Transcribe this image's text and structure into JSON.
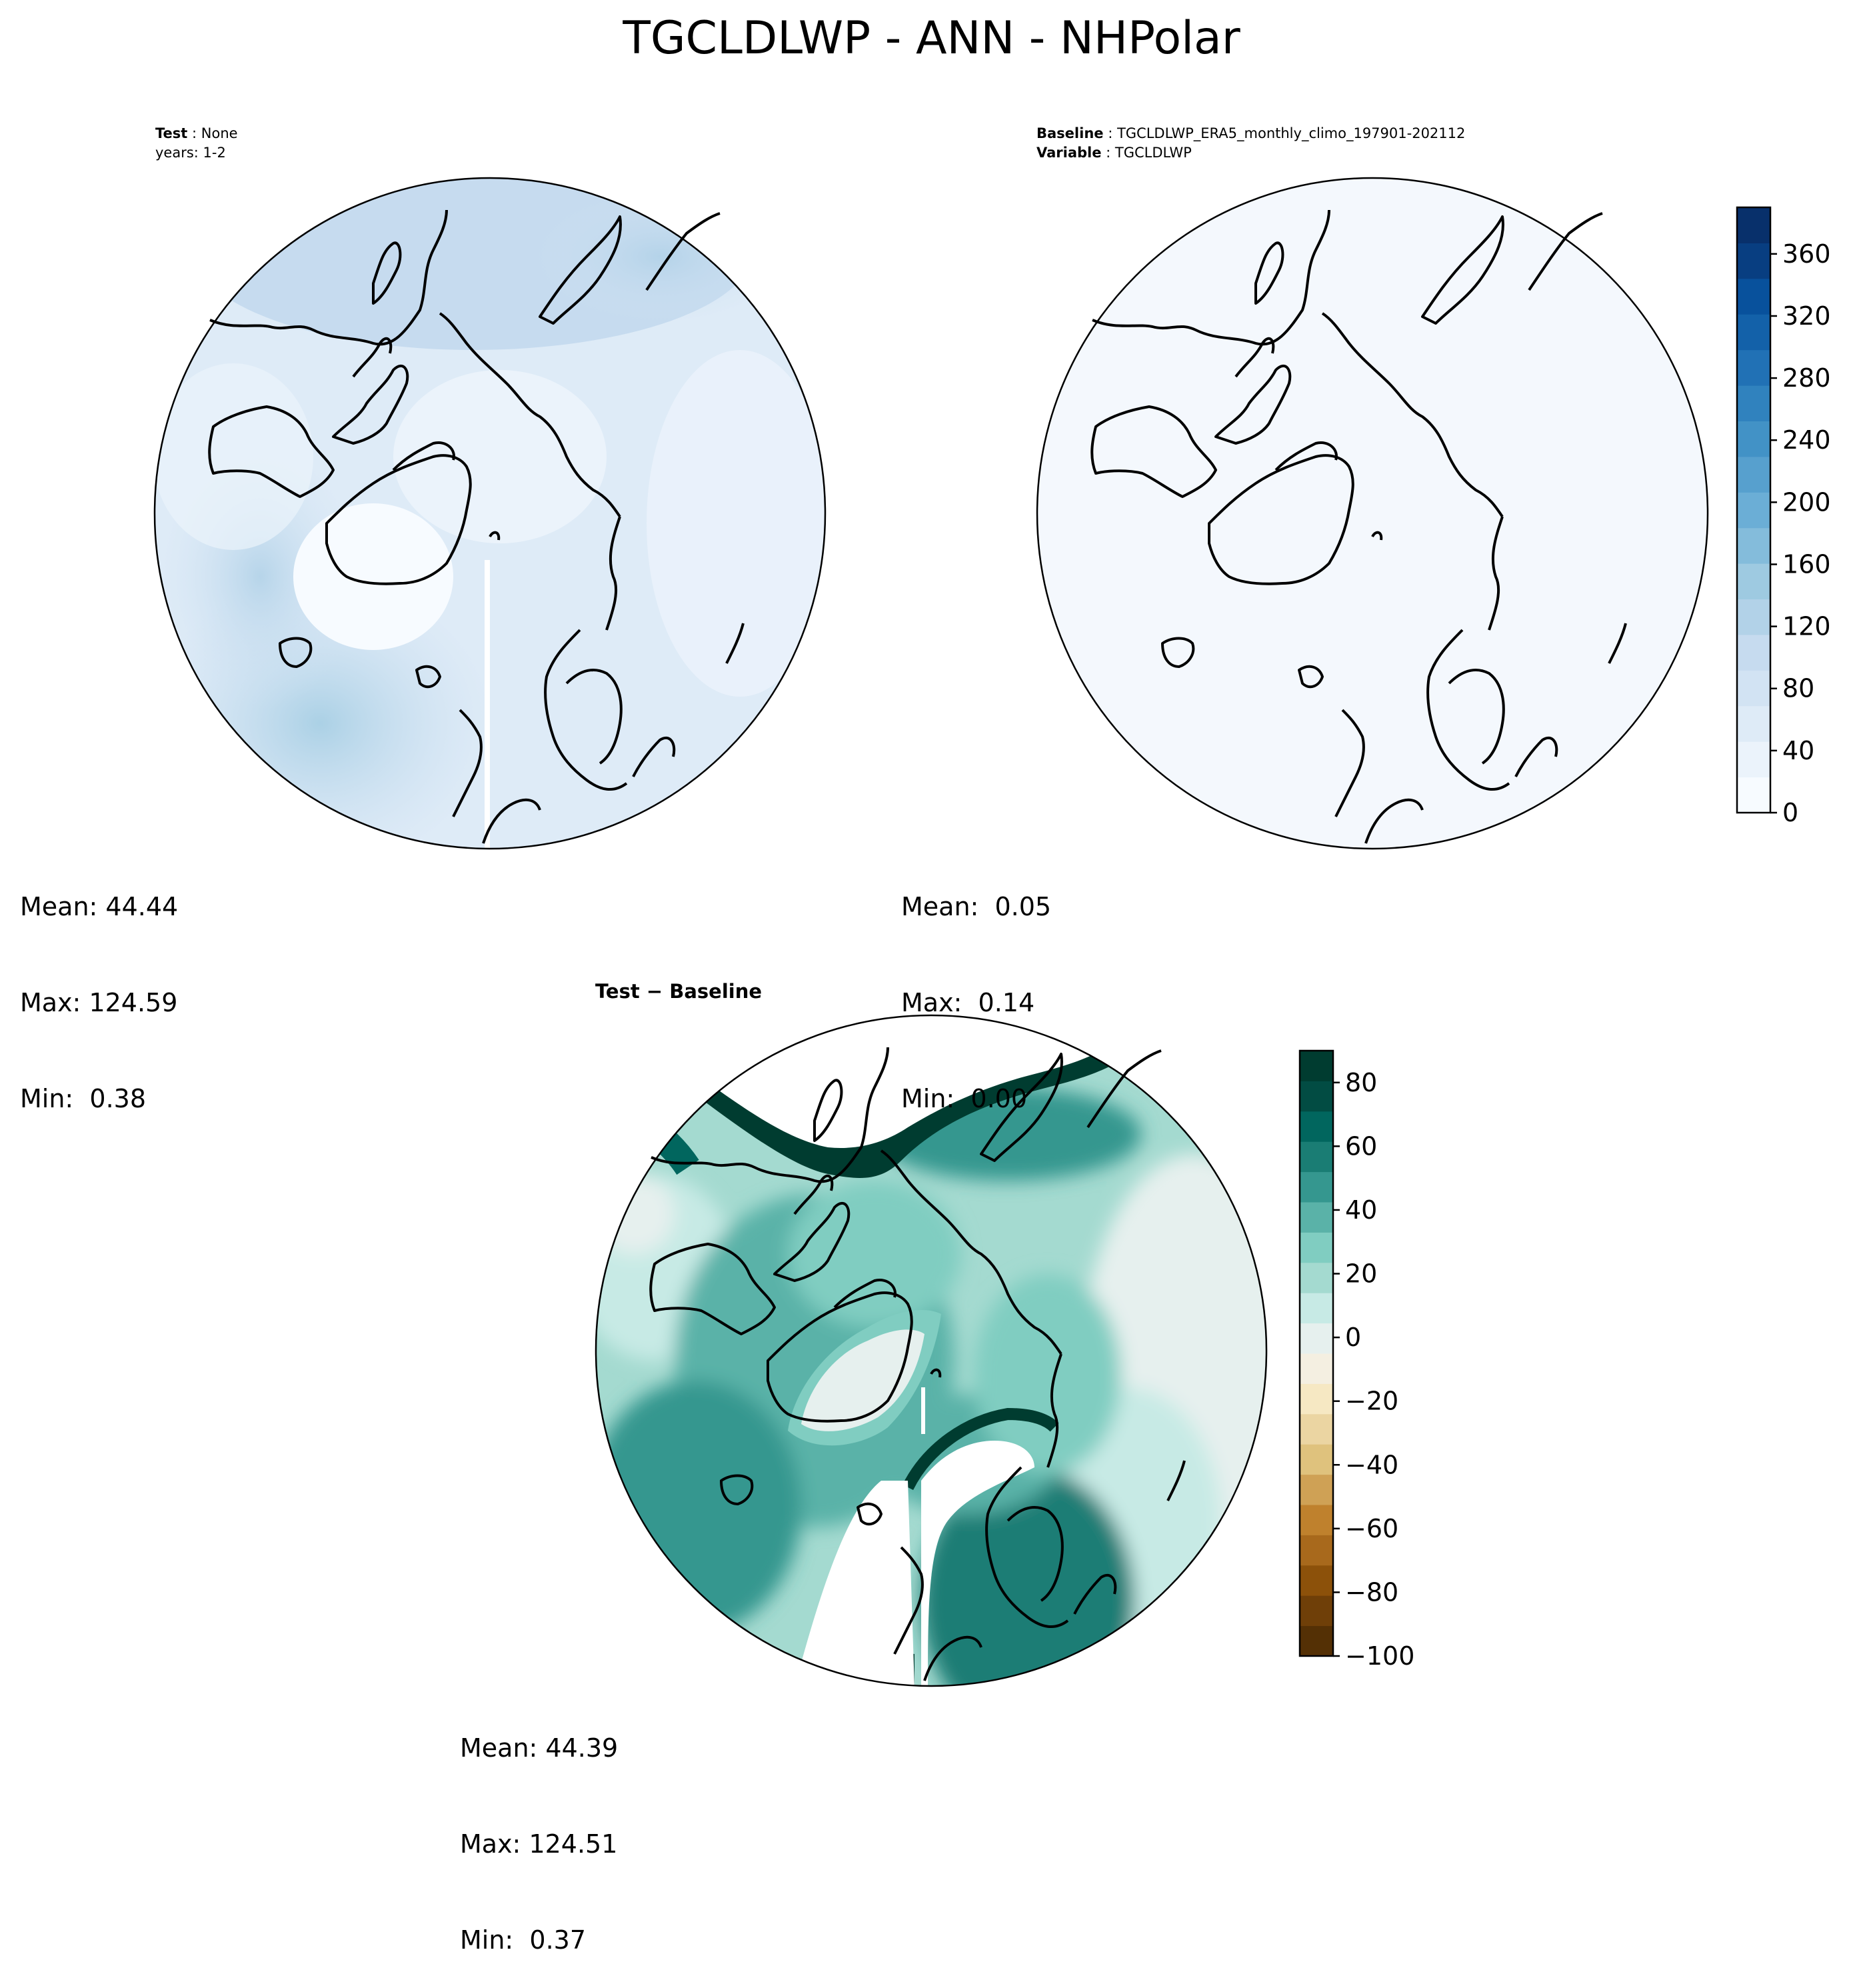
{
  "title": "TGCLDLWP - ANN - NHPolar",
  "panels": {
    "test": {
      "label_key": "Test",
      "label_value": "None",
      "years": "years: 1-2",
      "stats": {
        "mean": "Mean: 44.44",
        "max": "Max: 124.59",
        "min": "Min:  0.38"
      }
    },
    "baseline": {
      "label_key": "Baseline",
      "label_value": "TGCLDLWP_ERA5_monthly_climo_197901-202112",
      "variable_key": "Variable",
      "variable_value": "TGCLDLWP",
      "stats": {
        "mean": "Mean:  0.05",
        "max": "Max:  0.14",
        "min": "Min:  0.00"
      }
    },
    "difference": {
      "title": "Test − Baseline",
      "stats": {
        "mean": "Mean: 44.39",
        "max": "Max: 124.51",
        "min": "Min:  0.37"
      }
    }
  },
  "chart_data": [
    {
      "type": "heatmap",
      "panel": "test",
      "colormap": "Blues",
      "colorbar": {
        "min": 0,
        "max": 390,
        "ticks": [
          0,
          40,
          80,
          120,
          160,
          200,
          240,
          280,
          320,
          360
        ]
      },
      "mean": 44.44,
      "max": 124.59,
      "min": 0.38
    },
    {
      "type": "heatmap",
      "panel": "baseline",
      "colormap": "Blues",
      "colorbar": {
        "min": 0,
        "max": 390,
        "ticks": [
          0,
          40,
          80,
          120,
          160,
          200,
          240,
          280,
          320,
          360
        ]
      },
      "mean": 0.05,
      "max": 0.14,
      "min": 0.0
    },
    {
      "type": "heatmap",
      "panel": "difference",
      "colormap": "BrBG",
      "colorbar": {
        "min": -100,
        "max": 90,
        "ticks": [
          -100,
          -80,
          -60,
          -40,
          -20,
          0,
          20,
          40,
          60,
          80
        ]
      },
      "mean": 44.39,
      "max": 124.51,
      "min": 0.37
    }
  ],
  "colors": {
    "blues": [
      "#f7fbff",
      "#ebf3fb",
      "#deebf7",
      "#d2e3f3",
      "#c6dbef",
      "#b2d2e8",
      "#9ecae1",
      "#84bcdb",
      "#6baed6",
      "#57a0ce",
      "#4292c6",
      "#3082be",
      "#2171b5",
      "#1361a9",
      "#08519c",
      "#083e81",
      "#08306b"
    ],
    "brbg": [
      "#543005",
      "#6f3f08",
      "#8c510a",
      "#a8691c",
      "#bf812d",
      "#cfa155",
      "#dfc27d",
      "#ebd5a2",
      "#f6e8c3",
      "#f4efe1",
      "#e6f0ee",
      "#c7eae5",
      "#a4dad0",
      "#80cdc1",
      "#5ab2a8",
      "#35978f",
      "#1a7d74",
      "#01665e",
      "#024c43",
      "#003c30"
    ]
  }
}
